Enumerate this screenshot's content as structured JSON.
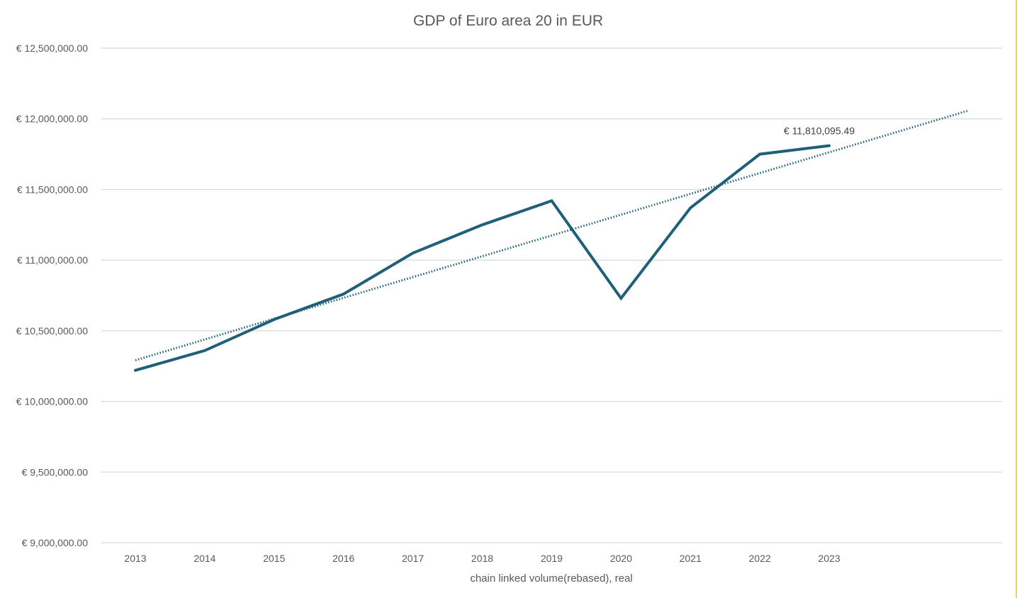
{
  "chart_data": {
    "type": "line",
    "title": "GDP of Euro area 20 in EUR",
    "xlabel": "chain linked volume(rebased), real",
    "ylabel": "",
    "categories": [
      "2013",
      "2014",
      "2015",
      "2016",
      "2017",
      "2018",
      "2019",
      "2020",
      "2021",
      "2022",
      "2023"
    ],
    "series": [
      {
        "values": [
          10220000,
          10360000,
          10580000,
          10760000,
          11050000,
          11250000,
          11420000,
          10730000,
          11370000,
          11750000,
          11810095.49
        ],
        "color": "#1f5f7a"
      }
    ],
    "trendline": {
      "type": "linear",
      "style": "dotted",
      "color": "#1f5f7a",
      "forecast_forward_periods": 2
    },
    "ylim": [
      9000000,
      12500000
    ],
    "y_ticks": [
      "€ 12,500,000.00",
      "€ 12,000,000.00",
      "€ 11,500,000.00",
      "€ 11,000,000.00",
      "€ 10,500,000.00",
      "€ 10,000,000.00",
      "€ 9,500,000.00",
      "€ 9,000,000.00"
    ],
    "y_tick_values": [
      12500000,
      12000000,
      11500000,
      11000000,
      10500000,
      10000000,
      9500000,
      9000000
    ],
    "data_labels": [
      {
        "index": 10,
        "text": "€ 11,810,095.49"
      }
    ],
    "grid": true,
    "legend": "none"
  }
}
